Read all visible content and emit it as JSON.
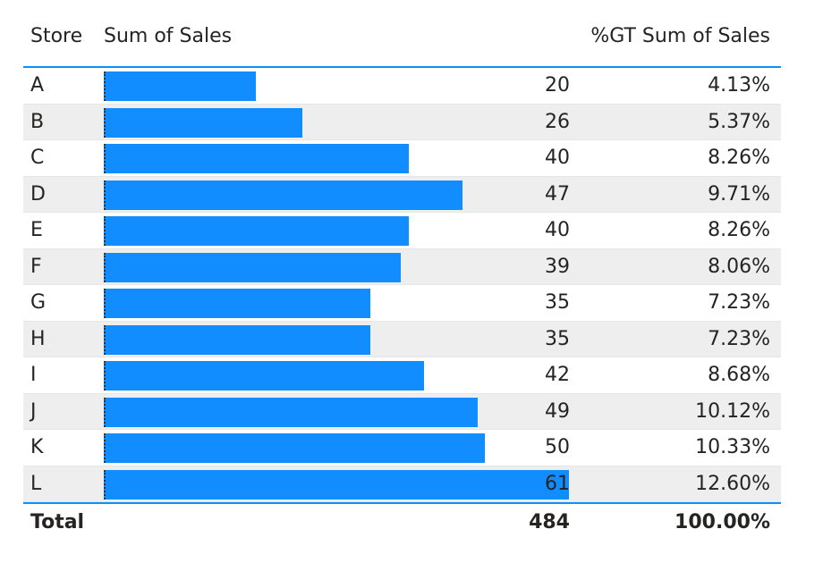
{
  "header": {
    "store": "Store",
    "sales": "Sum of Sales",
    "pct": "%GT Sum of Sales"
  },
  "colors": {
    "bar": "#118DFF",
    "accent_line": "#118DFF",
    "alt_row": "#eeeeee"
  },
  "chart_data": {
    "type": "table",
    "columns": [
      "Store",
      "Sum of Sales",
      "%GT Sum of Sales"
    ],
    "bar_max": 61,
    "rows": [
      {
        "store": "A",
        "sales": 20,
        "sales_label": "20",
        "pct": "4.13%"
      },
      {
        "store": "B",
        "sales": 26,
        "sales_label": "26",
        "pct": "5.37%"
      },
      {
        "store": "C",
        "sales": 40,
        "sales_label": "40",
        "pct": "8.26%"
      },
      {
        "store": "D",
        "sales": 47,
        "sales_label": "47",
        "pct": "9.71%"
      },
      {
        "store": "E",
        "sales": 40,
        "sales_label": "40",
        "pct": "8.26%"
      },
      {
        "store": "F",
        "sales": 39,
        "sales_label": "39",
        "pct": "8.06%"
      },
      {
        "store": "G",
        "sales": 35,
        "sales_label": "35",
        "pct": "7.23%"
      },
      {
        "store": "H",
        "sales": 35,
        "sales_label": "35",
        "pct": "7.23%"
      },
      {
        "store": "I",
        "sales": 42,
        "sales_label": "42",
        "pct": "8.68%"
      },
      {
        "store": "J",
        "sales": 49,
        "sales_label": "49",
        "pct": "10.12%"
      },
      {
        "store": "K",
        "sales": 50,
        "sales_label": "50",
        "pct": "10.33%"
      },
      {
        "store": "L",
        "sales": 61,
        "sales_label": "61",
        "pct": "12.60%"
      }
    ],
    "total": {
      "label": "Total",
      "sales": "484",
      "pct": "100.00%"
    }
  }
}
